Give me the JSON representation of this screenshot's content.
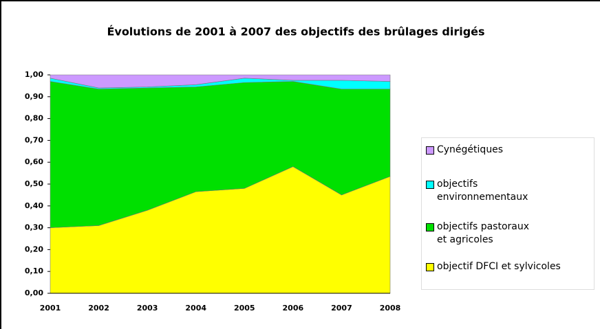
{
  "chart_data": {
    "type": "stacked_area",
    "title": "Évolutions de 2001 à 2007 des objectifs des brûlages dirigés",
    "categories": [
      "2001",
      "2002",
      "2003",
      "2004",
      "2005",
      "2006",
      "2007",
      "2008"
    ],
    "series": [
      {
        "name": "objectif DFCI  et sylvicoles",
        "color": "#ffff00",
        "values": [
          0.3,
          0.31,
          0.38,
          0.465,
          0.48,
          0.58,
          0.45,
          0.535
        ]
      },
      {
        "name": "objectifs pastoraux et agricoles",
        "color": "#00e000",
        "values": [
          0.67,
          0.625,
          0.56,
          0.48,
          0.485,
          0.39,
          0.485,
          0.4
        ]
      },
      {
        "name": "objectifs environnementaux",
        "color": "#00ffff",
        "values": [
          0.015,
          0.005,
          0.005,
          0.01,
          0.02,
          0.005,
          0.04,
          0.035
        ]
      },
      {
        "name": "Cynégétiques",
        "color": "#cc99ff",
        "values": [
          0.015,
          0.06,
          0.055,
          0.045,
          0.015,
          0.025,
          0.025,
          0.03
        ]
      }
    ],
    "ylim": [
      0,
      1
    ],
    "yticks": [
      {
        "value": 0,
        "label": "0,00"
      },
      {
        "value": 0.1,
        "label": "0,10"
      },
      {
        "value": 0.2,
        "label": "0,20"
      },
      {
        "value": 0.3,
        "label": "0,30"
      },
      {
        "value": 0.4,
        "label": "0,40"
      },
      {
        "value": 0.5,
        "label": "0,50"
      },
      {
        "value": 0.6,
        "label": "0,60"
      },
      {
        "value": 0.7,
        "label": "0,70"
      },
      {
        "value": 0.8,
        "label": "0,80"
      },
      {
        "value": 0.9,
        "label": "0,90"
      },
      {
        "value": 1,
        "label": "1,00"
      }
    ],
    "legend": "right"
  }
}
